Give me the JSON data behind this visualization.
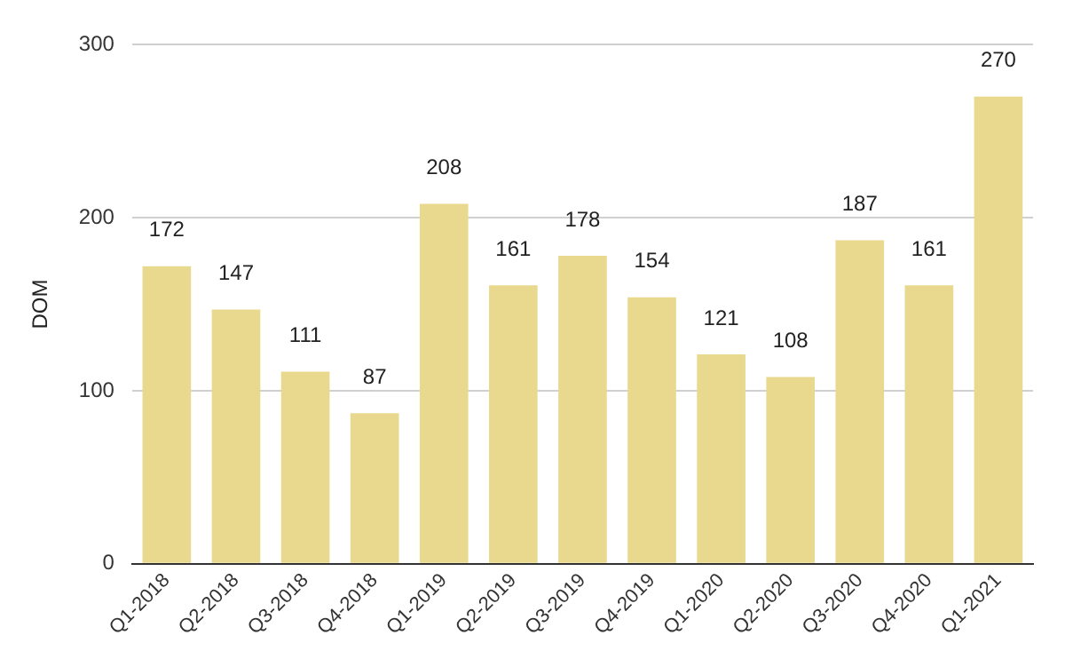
{
  "chart_data": {
    "type": "bar",
    "ylabel": "DOM",
    "categories": [
      "Q1-2018",
      "Q2-2018",
      "Q3-2018",
      "Q4-2018",
      "Q1-2019",
      "Q2-2019",
      "Q3-2019",
      "Q4-2019",
      "Q1-2020",
      "Q2-2020",
      "Q3-2020",
      "Q4-2020",
      "Q1-2021"
    ],
    "values": [
      172,
      147,
      111,
      87,
      208,
      161,
      178,
      154,
      121,
      108,
      187,
      161,
      270
    ],
    "color": "#e8d98f",
    "ylim": [
      0,
      300
    ],
    "yticks": [
      0,
      100,
      200,
      300
    ],
    "grid": "y",
    "data_labels": true
  }
}
